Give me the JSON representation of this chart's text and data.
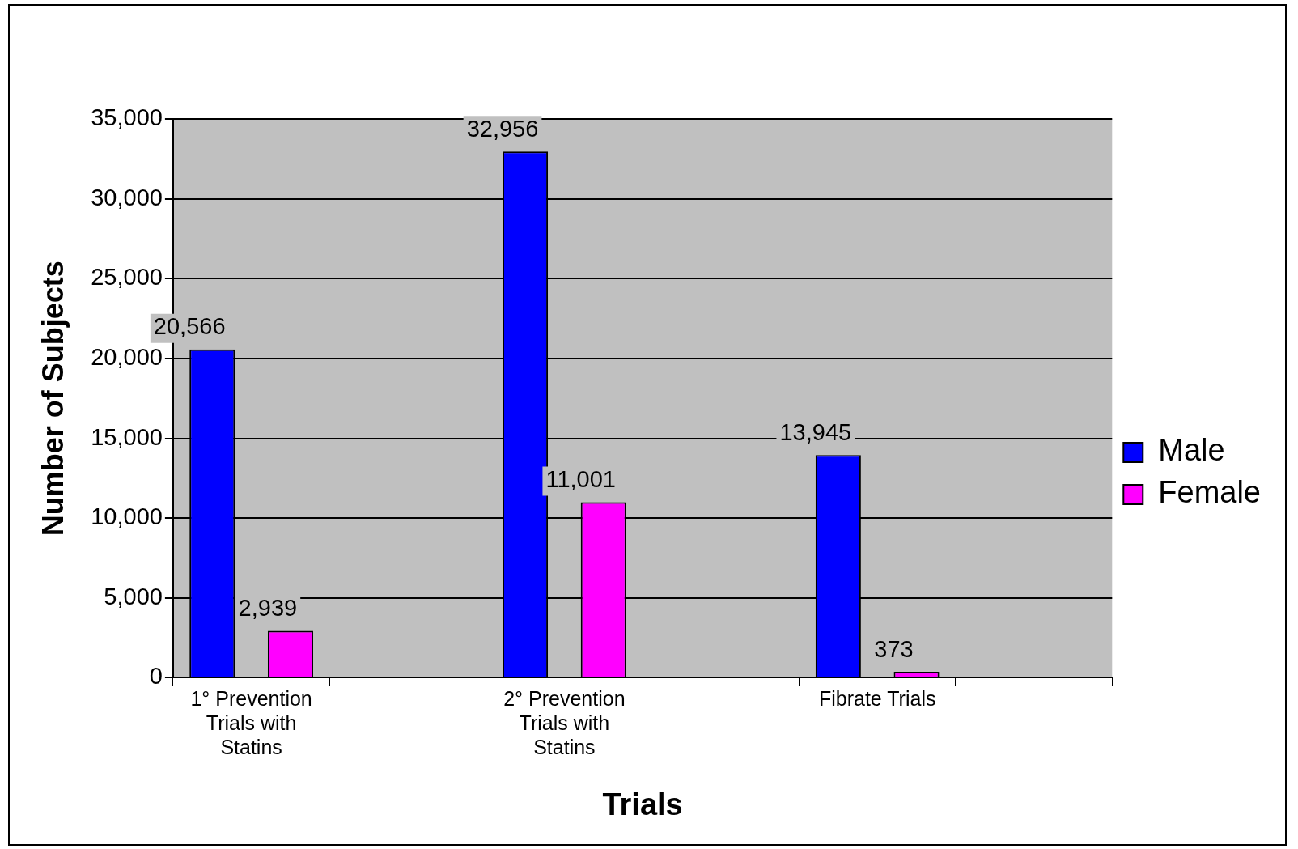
{
  "chart_data": {
    "type": "bar",
    "xlabel": "Trials",
    "ylabel": "Number of Subjects",
    "categories": [
      "1° Prevention Trials with Statins",
      null,
      "2° Prevention Trials with Statins",
      null,
      "Fibrate Trials",
      null
    ],
    "series": [
      {
        "name": "Male",
        "color": "#0000ff",
        "values": [
          20566,
          null,
          32956,
          null,
          13945,
          null
        ],
        "value_labels": [
          "20,566",
          null,
          "32,956",
          null,
          "13,945",
          null
        ]
      },
      {
        "name": "Female",
        "color": "#ff00ff",
        "values": [
          2939,
          null,
          11001,
          null,
          373,
          null
        ],
        "value_labels": [
          "2,939",
          null,
          "11,001",
          null,
          "373",
          null
        ]
      }
    ],
    "ylim": [
      0,
      35000
    ],
    "yticks": [
      {
        "value": 0,
        "label": "0"
      },
      {
        "value": 5000,
        "label": "5,000"
      },
      {
        "value": 10000,
        "label": "10,000"
      },
      {
        "value": 15000,
        "label": "15,000"
      },
      {
        "value": 20000,
        "label": "20,000"
      },
      {
        "value": 25000,
        "label": "25,000"
      },
      {
        "value": 30000,
        "label": "30,000"
      },
      {
        "value": 35000,
        "label": "35,000"
      }
    ],
    "grid": "y",
    "legend": "right"
  }
}
